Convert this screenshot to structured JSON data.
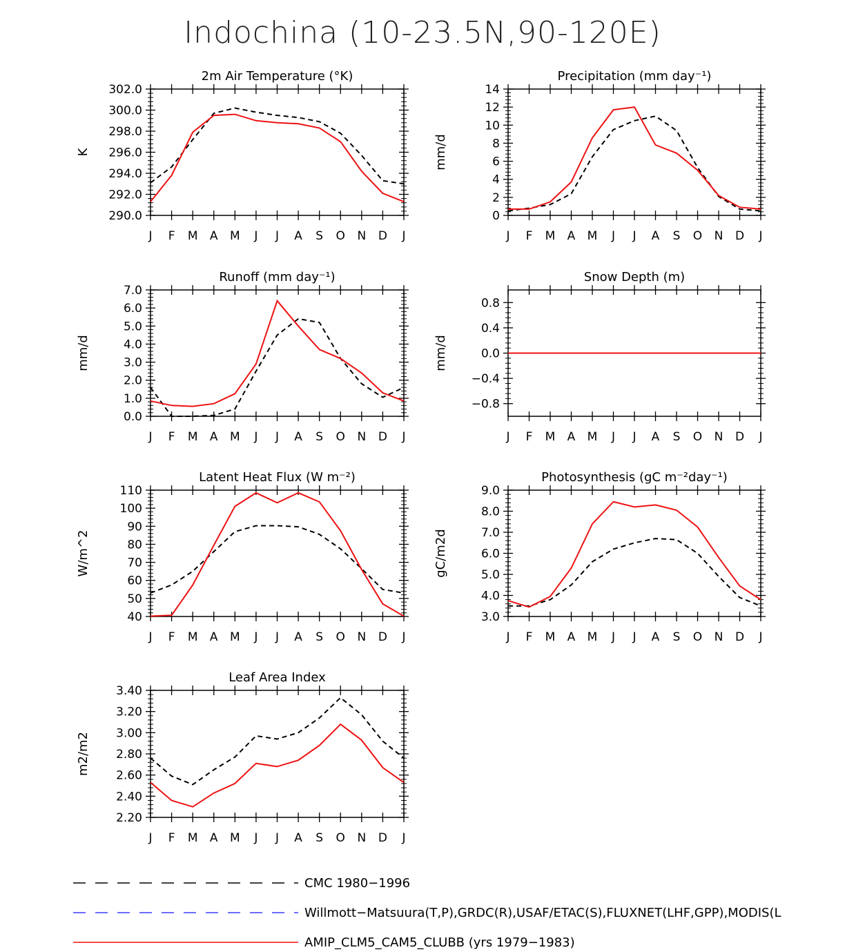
{
  "title": "Indochina (10-23.5N,90-120E)",
  "colors": {
    "obs1": "#000000",
    "obs2": "#3b3bff",
    "model": "#ee1111"
  },
  "month_labels": [
    "J",
    "F",
    "M",
    "A",
    "M",
    "J",
    "J",
    "A",
    "S",
    "O",
    "N",
    "D",
    "J"
  ],
  "legend": [
    {
      "label": "CMC 1980-1996",
      "style": "dashed",
      "color": "#000000"
    },
    {
      "label": "Willmott-Matsuura(T,P),GRDC(R),USAF/ETAC(S),FLUXNET(LHF,GPP),MODIS(L",
      "style": "dashed",
      "color": "#3b3bff"
    },
    {
      "label": "AMIP_CLM5_CAM5_CLUBB (yrs 1979-1983)",
      "style": "solid",
      "color": "#ee1111"
    }
  ],
  "chart_data": [
    {
      "type": "line",
      "title": "2m Air Temperature (°K)",
      "ylabel": "K",
      "ylim": [
        290,
        302
      ],
      "yticks": [
        290,
        292,
        294,
        296,
        298,
        300,
        302
      ],
      "ytick_labels": [
        "290.0",
        "292.0",
        "294.0",
        "296.0",
        "298.0",
        "300.0",
        "302.0"
      ],
      "categories": [
        "J",
        "F",
        "M",
        "A",
        "M",
        "J",
        "J",
        "A",
        "S",
        "O",
        "N",
        "D",
        "J"
      ],
      "series": [
        {
          "name": "obs",
          "style": "dashed",
          "values": [
            293.1,
            294.6,
            297.2,
            299.7,
            300.2,
            299.8,
            299.5,
            299.3,
            298.9,
            297.8,
            295.7,
            293.3,
            293.0
          ]
        },
        {
          "name": "model",
          "style": "solid",
          "values": [
            291.3,
            293.8,
            297.9,
            299.5,
            299.6,
            299.0,
            298.8,
            298.7,
            298.3,
            297.0,
            294.2,
            292.1,
            291.3
          ]
        }
      ]
    },
    {
      "type": "line",
      "title": "Precipitation (mm day⁻¹)",
      "ylabel": "mm/d",
      "ylim": [
        0,
        14
      ],
      "yticks": [
        0,
        2,
        4,
        6,
        8,
        10,
        12,
        14
      ],
      "ytick_labels": [
        "0",
        "2",
        "4",
        "6",
        "8",
        "10",
        "12",
        "14"
      ],
      "categories": [
        "J",
        "F",
        "M",
        "A",
        "M",
        "J",
        "J",
        "A",
        "S",
        "O",
        "N",
        "D",
        "J"
      ],
      "series": [
        {
          "name": "obs",
          "style": "dashed",
          "values": [
            0.5,
            0.8,
            1.2,
            2.4,
            6.5,
            9.5,
            10.5,
            11.0,
            9.4,
            5.3,
            2.1,
            0.7,
            0.5
          ]
        },
        {
          "name": "model",
          "style": "solid",
          "values": [
            0.7,
            0.7,
            1.5,
            3.7,
            8.6,
            11.7,
            12.0,
            7.8,
            6.9,
            5.0,
            2.2,
            0.9,
            0.7
          ]
        }
      ]
    },
    {
      "type": "line",
      "title": "Runoff (mm day⁻¹)",
      "ylabel": "mm/d",
      "ylim": [
        0,
        7
      ],
      "yticks": [
        0,
        1,
        2,
        3,
        4,
        5,
        6,
        7
      ],
      "ytick_labels": [
        "0.0",
        "1.0",
        "2.0",
        "3.0",
        "4.0",
        "5.0",
        "6.0",
        "7.0"
      ],
      "categories": [
        "J",
        "F",
        "M",
        "A",
        "M",
        "J",
        "J",
        "A",
        "S",
        "O",
        "N",
        "D",
        "J"
      ],
      "series": [
        {
          "name": "obs",
          "style": "dashed",
          "values": [
            1.6,
            0.0,
            0.0,
            0.05,
            0.4,
            2.5,
            4.5,
            5.4,
            5.2,
            3.2,
            1.8,
            1.05,
            1.6
          ]
        },
        {
          "name": "model",
          "style": "solid",
          "values": [
            0.85,
            0.6,
            0.55,
            0.7,
            1.25,
            2.9,
            6.4,
            5.0,
            3.7,
            3.2,
            2.4,
            1.3,
            0.85
          ]
        }
      ]
    },
    {
      "type": "line",
      "title": "Snow Depth (m)",
      "ylabel": "mm/d",
      "ylim": [
        -1.0,
        1.0
      ],
      "yticks": [
        -0.8,
        -0.4,
        0.0,
        0.4,
        0.8
      ],
      "ytick_labels": [
        "-0.8",
        "-0.4",
        "0.0",
        "0.4",
        "0.8"
      ],
      "categories": [
        "J",
        "F",
        "M",
        "A",
        "M",
        "J",
        "J",
        "A",
        "S",
        "O",
        "N",
        "D",
        "J"
      ],
      "series": [
        {
          "name": "obs",
          "style": "dashed",
          "values": [
            0,
            0,
            0,
            0,
            0,
            0,
            0,
            0,
            0,
            0,
            0,
            0,
            0
          ]
        },
        {
          "name": "model",
          "style": "solid",
          "values": [
            0,
            0,
            0,
            0,
            0,
            0,
            0,
            0,
            0,
            0,
            0,
            0,
            0
          ]
        }
      ]
    },
    {
      "type": "line",
      "title": "Latent Heat Flux (W m⁻²)",
      "ylabel": "W/m^2",
      "ylim": [
        40,
        110
      ],
      "yticks": [
        40,
        50,
        60,
        70,
        80,
        90,
        100,
        110
      ],
      "ytick_labels": [
        "40",
        "50",
        "60",
        "70",
        "80",
        "90",
        "100",
        "110"
      ],
      "categories": [
        "J",
        "F",
        "M",
        "A",
        "M",
        "J",
        "J",
        "A",
        "S",
        "O",
        "N",
        "D",
        "J"
      ],
      "series": [
        {
          "name": "obs",
          "style": "dashed",
          "values": [
            53,
            57.5,
            65,
            76,
            87,
            90.3,
            90.3,
            89.7,
            85.5,
            77.5,
            66.5,
            55,
            53
          ]
        },
        {
          "name": "model",
          "style": "solid",
          "values": [
            40.2,
            40.7,
            57.5,
            79.5,
            101,
            108.5,
            103,
            108.5,
            103.5,
            87.5,
            66,
            47,
            40.2
          ]
        }
      ]
    },
    {
      "type": "line",
      "title": "Photosynthesis (gC m⁻²day⁻¹)",
      "ylabel": "gC/m2d",
      "ylim": [
        3.0,
        9.0
      ],
      "yticks": [
        3,
        4,
        5,
        6,
        7,
        8,
        9
      ],
      "ytick_labels": [
        "3.0",
        "4.0",
        "5.0",
        "6.0",
        "7.0",
        "8.0",
        "9.0"
      ],
      "categories": [
        "J",
        "F",
        "M",
        "A",
        "M",
        "J",
        "J",
        "A",
        "S",
        "O",
        "N",
        "D",
        "J"
      ],
      "series": [
        {
          "name": "obs",
          "style": "dashed",
          "values": [
            3.5,
            3.5,
            3.8,
            4.5,
            5.6,
            6.2,
            6.5,
            6.7,
            6.65,
            6.0,
            4.9,
            3.9,
            3.5
          ]
        },
        {
          "name": "model",
          "style": "solid",
          "values": [
            3.75,
            3.45,
            3.95,
            5.3,
            7.4,
            8.45,
            8.2,
            8.3,
            8.05,
            7.25,
            5.8,
            4.45,
            3.8
          ]
        }
      ]
    },
    {
      "type": "line",
      "title": "Leaf Area Index",
      "ylabel": "m2/m2",
      "ylim": [
        2.2,
        3.4
      ],
      "yticks": [
        2.2,
        2.4,
        2.6,
        2.8,
        3.0,
        3.2,
        3.4
      ],
      "ytick_labels": [
        "2.20",
        "2.40",
        "2.60",
        "2.80",
        "3.00",
        "3.20",
        "3.40"
      ],
      "categories": [
        "J",
        "F",
        "M",
        "A",
        "M",
        "J",
        "J",
        "A",
        "S",
        "O",
        "N",
        "D",
        "J"
      ],
      "series": [
        {
          "name": "obs",
          "style": "dashed",
          "values": [
            2.76,
            2.59,
            2.51,
            2.65,
            2.77,
            2.97,
            2.94,
            3.0,
            3.14,
            3.33,
            3.17,
            2.92,
            2.76
          ]
        },
        {
          "name": "model",
          "style": "solid",
          "values": [
            2.53,
            2.36,
            2.3,
            2.43,
            2.52,
            2.71,
            2.68,
            2.74,
            2.88,
            3.08,
            2.93,
            2.67,
            2.53
          ]
        }
      ]
    }
  ]
}
